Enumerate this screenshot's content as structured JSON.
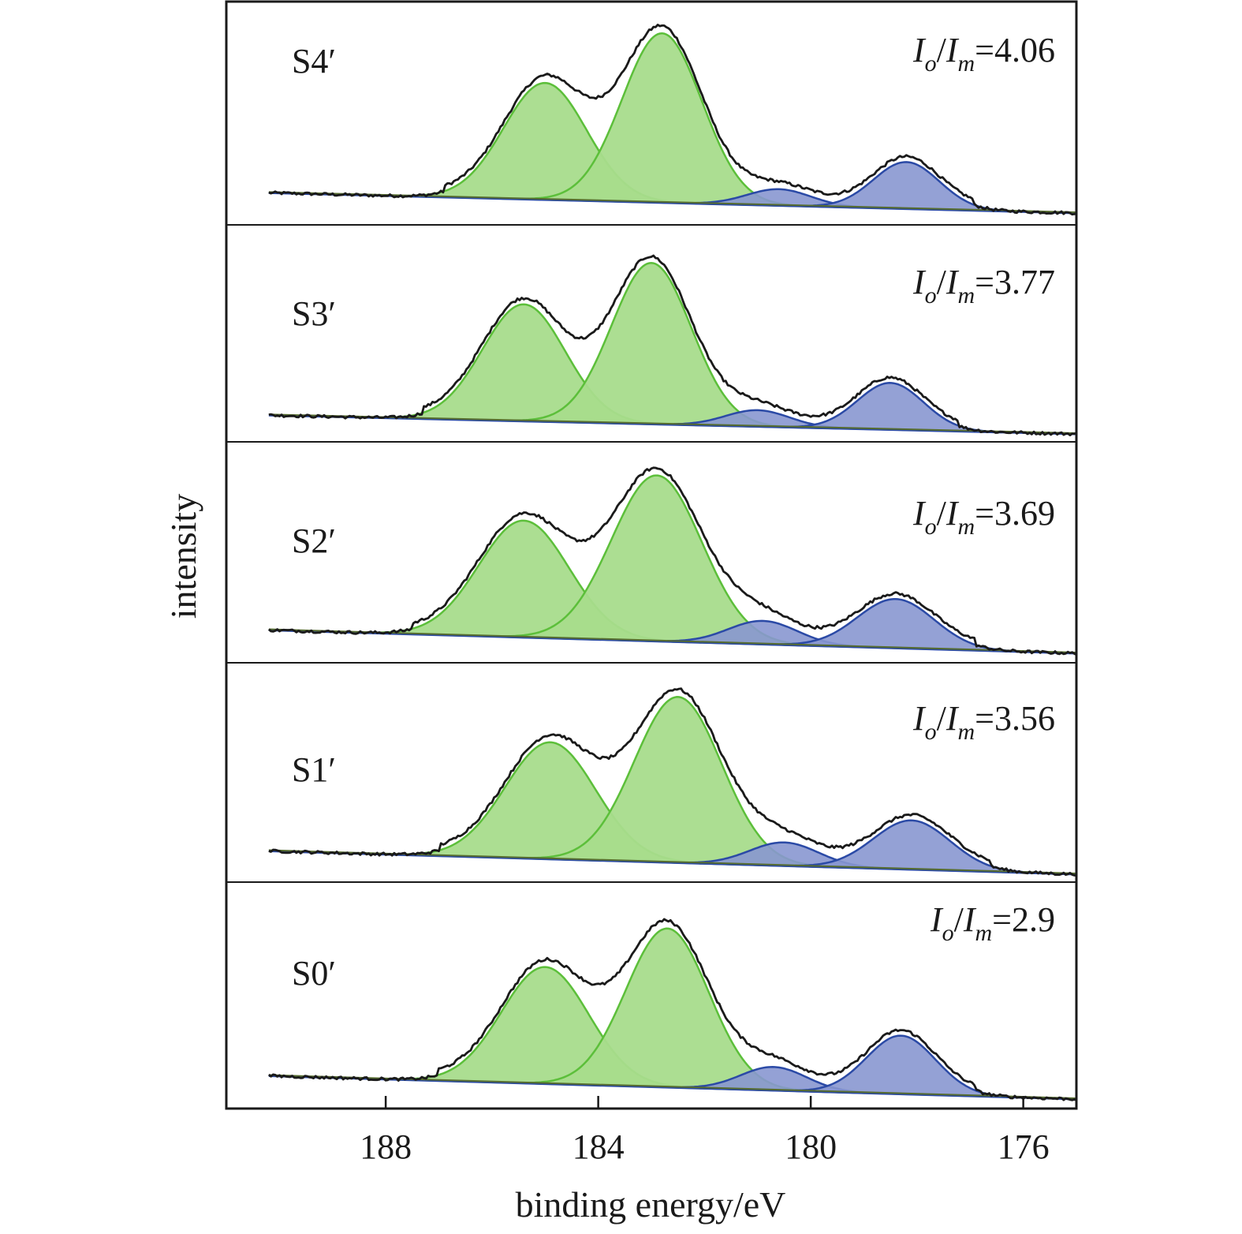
{
  "chart_data": {
    "type": "line",
    "xlabel": "binding energy/eV",
    "ylabel": "intensity",
    "xlim": [
      191,
      175
    ],
    "x_reversed": true,
    "x_ticks": [
      188,
      184,
      180,
      176
    ],
    "x_tick_labels": [
      "188",
      "184",
      "180",
      "176"
    ],
    "ratio_prefix": "I",
    "ratio_sub1": "o",
    "ratio_slash": "/",
    "ratio_sub2": "m",
    "colors": {
      "measured": "#1a1a1a",
      "green_fill": "#a8dc8c",
      "green_line": "#5cbf3a",
      "blue_fill": "#8897d0",
      "blue_line": "#2b4aa6",
      "background": "#556b2f"
    },
    "panels": [
      {
        "label": "S4′",
        "ratio": "=4.06",
        "peaks": [
          {
            "center": 185.0,
            "width": 0.78,
            "height": 1.0,
            "type": "green"
          },
          {
            "center": 182.8,
            "width": 0.75,
            "height": 1.45,
            "type": "green"
          },
          {
            "center": 180.6,
            "width": 0.6,
            "height": 0.14,
            "type": "blue"
          },
          {
            "center": 178.2,
            "width": 0.62,
            "height": 0.4,
            "type": "blue"
          }
        ]
      },
      {
        "label": "S3′",
        "ratio": "=3.77",
        "peaks": [
          {
            "center": 185.4,
            "width": 0.78,
            "height": 1.0,
            "type": "green"
          },
          {
            "center": 183.0,
            "width": 0.75,
            "height": 1.38,
            "type": "green"
          },
          {
            "center": 181.0,
            "width": 0.6,
            "height": 0.14,
            "type": "blue"
          },
          {
            "center": 178.5,
            "width": 0.62,
            "height": 0.4,
            "type": "blue"
          }
        ]
      },
      {
        "label": "S2′",
        "ratio": "=3.69",
        "peaks": [
          {
            "center": 185.4,
            "width": 0.85,
            "height": 1.0,
            "type": "green"
          },
          {
            "center": 182.9,
            "width": 0.85,
            "height": 1.42,
            "type": "green"
          },
          {
            "center": 180.9,
            "width": 0.65,
            "height": 0.2,
            "type": "blue"
          },
          {
            "center": 178.4,
            "width": 0.72,
            "height": 0.42,
            "type": "blue"
          }
        ]
      },
      {
        "label": "S1′",
        "ratio": "=3.56",
        "peaks": [
          {
            "center": 184.9,
            "width": 0.85,
            "height": 1.0,
            "type": "green"
          },
          {
            "center": 182.5,
            "width": 0.82,
            "height": 1.42,
            "type": "green"
          },
          {
            "center": 180.5,
            "width": 0.65,
            "height": 0.2,
            "type": "blue"
          },
          {
            "center": 178.1,
            "width": 0.72,
            "height": 0.42,
            "type": "blue"
          }
        ]
      },
      {
        "label": "S0′",
        "ratio": "=2.9",
        "peaks": [
          {
            "center": 185.0,
            "width": 0.82,
            "height": 1.0,
            "type": "green"
          },
          {
            "center": 182.7,
            "width": 0.78,
            "height": 1.36,
            "type": "green"
          },
          {
            "center": 180.7,
            "width": 0.62,
            "height": 0.2,
            "type": "blue"
          },
          {
            "center": 178.3,
            "width": 0.65,
            "height": 0.5,
            "type": "blue"
          }
        ]
      }
    ]
  }
}
